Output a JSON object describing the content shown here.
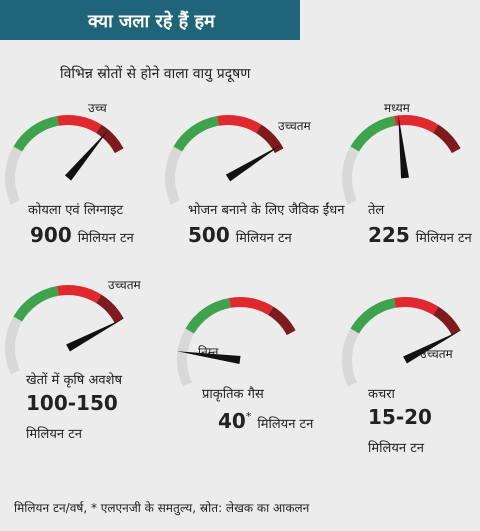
{
  "header": {
    "title": "क्या जला रहे हैं हम",
    "subtitle": "विभिन्न स्रोतों से होने वाला वायु प्रदूषण"
  },
  "items": [
    {
      "label": "कोयला एवं लिग्नाइट",
      "amount": "900",
      "unit": "मिलियन टन",
      "level": "उच्च"
    },
    {
      "label": "भोजन बनाने के लिए जैविक ईंधन",
      "amount": "500",
      "unit": "मिलियन टन",
      "level": "उच्चतम"
    },
    {
      "label": "तेल",
      "amount": "225",
      "unit": "मिलियन टन",
      "level": "मध्यम"
    },
    {
      "label": "खेतों में कृषि अवशेष",
      "amount": "100-150",
      "unit": "मिलियन टन",
      "level": "उच्चतम"
    },
    {
      "label": "प्राकृतिक गैस",
      "amount": "40",
      "note": "*",
      "unit": "मिलियन टन",
      "level": "निम्न"
    },
    {
      "label": "कचरा",
      "amount": "15-20",
      "unit": "मिलियन टन",
      "level": "उच्चतम"
    }
  ],
  "footer": "मिलियन टन/वर्ष,  * एलएनजी के समतुल्य, स्रोत: लेखक का आकलन"
}
